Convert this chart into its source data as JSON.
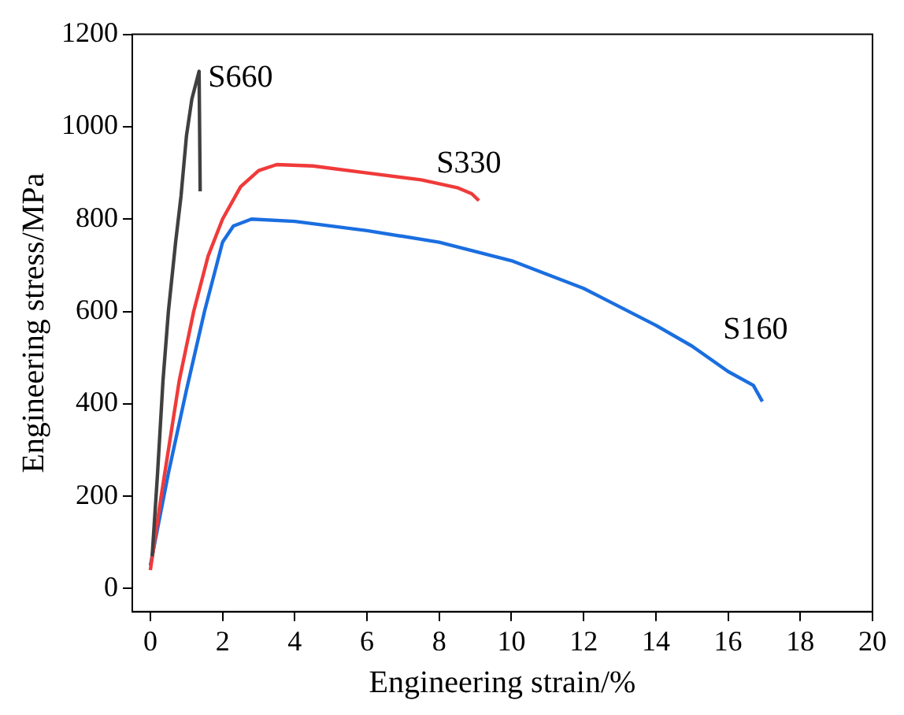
{
  "chart_data": {
    "type": "line",
    "xlabel": "Engineering strain/%",
    "ylabel": "Engineering stress/MPa",
    "xlim": [
      -0.5,
      20
    ],
    "ylim": [
      -50,
      1200
    ],
    "xticks": [
      0,
      2,
      4,
      6,
      8,
      10,
      12,
      14,
      16,
      18,
      20
    ],
    "yticks": [
      0,
      200,
      400,
      600,
      800,
      1000,
      1200
    ],
    "grid": false,
    "legend": false,
    "marker": "none",
    "line_style": "solid",
    "series": [
      {
        "name": "S660",
        "color": "#404040",
        "x": [
          0.05,
          0.2,
          0.35,
          0.5,
          0.7,
          0.85,
          1.0,
          1.15,
          1.35,
          1.38
        ],
        "values": [
          70,
          250,
          450,
          600,
          750,
          850,
          980,
          1060,
          1120,
          860
        ]
      },
      {
        "name": "S330",
        "color": "#f03a3a",
        "x": [
          0,
          0.3,
          0.8,
          1.2,
          1.6,
          2.0,
          2.5,
          3,
          3.5,
          4.5,
          6,
          7.5,
          8.5,
          8.9,
          9.1
        ],
        "values": [
          40,
          200,
          450,
          600,
          720,
          800,
          870,
          905,
          918,
          915,
          900,
          885,
          868,
          855,
          840
        ]
      },
      {
        "name": "S160",
        "color": "#1a6ee0",
        "x": [
          0,
          0.5,
          1.0,
          1.5,
          2.0,
          2.3,
          2.8,
          4,
          6,
          8,
          10,
          12,
          14,
          15,
          16,
          16.7,
          16.95
        ],
        "values": [
          50,
          250,
          430,
          600,
          750,
          785,
          800,
          795,
          775,
          750,
          710,
          650,
          570,
          525,
          470,
          440,
          405
        ]
      }
    ]
  }
}
